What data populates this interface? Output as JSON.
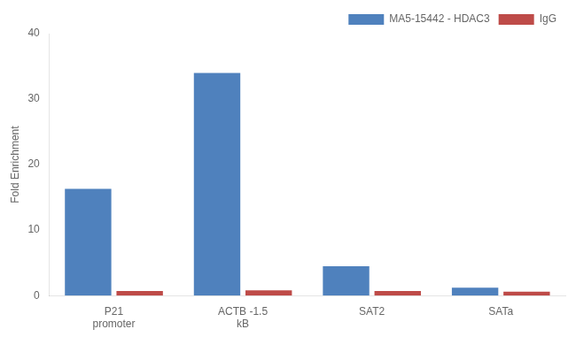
{
  "chart_data": {
    "type": "bar",
    "ylabel": "Fold Enrichment",
    "categories": [
      "P21\npromoter",
      "ACTB -1.5\nkB",
      "SAT2",
      "SATa"
    ],
    "series": [
      {
        "name": "MA5-15442 - HDAC3",
        "color": "#4F81BD",
        "values": [
          16.3,
          34.0,
          4.5,
          1.2
        ]
      },
      {
        "name": "IgG",
        "color": "#BE4B48",
        "values": [
          0.7,
          0.8,
          0.7,
          0.6
        ]
      }
    ],
    "ylim": [
      0,
      40
    ],
    "yticks": [
      0,
      10,
      20,
      30,
      40
    ],
    "grid": false,
    "legend": "upper right"
  }
}
